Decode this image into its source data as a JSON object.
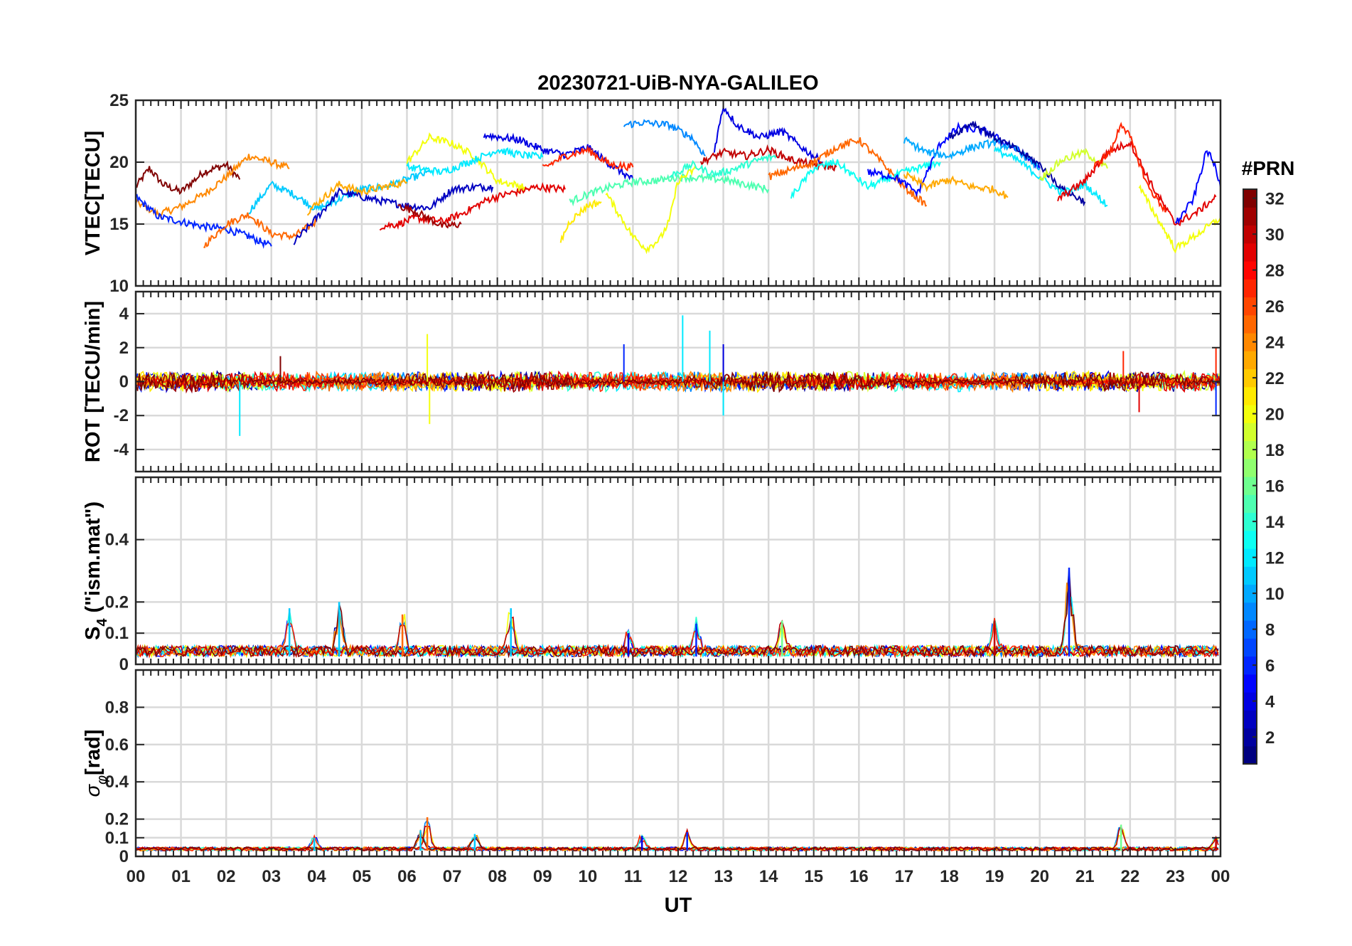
{
  "figure": {
    "title": "20230721-UiB-NYA-GALILEO",
    "xlabel": "UT",
    "x_ticks": [
      "00",
      "01",
      "02",
      "03",
      "04",
      "05",
      "06",
      "07",
      "08",
      "09",
      "10",
      "11",
      "12",
      "13",
      "14",
      "15",
      "16",
      "17",
      "18",
      "19",
      "20",
      "21",
      "22",
      "23",
      "00"
    ]
  },
  "colorbar": {
    "label": "#PRN",
    "range": [
      1,
      32
    ],
    "ticks": [
      "2",
      "4",
      "6",
      "8",
      "10",
      "12",
      "14",
      "16",
      "18",
      "20",
      "22",
      "24",
      "26",
      "28",
      "30",
      "32"
    ],
    "colormap": "jet"
  },
  "chart_data": [
    {
      "id": "vtec",
      "type": "line",
      "ylabel": "VTEC[TECU]",
      "ylim": [
        10,
        25
      ],
      "yticks": [
        "10",
        "15",
        "20",
        "25"
      ],
      "xlim": [
        0,
        24
      ],
      "grid": true,
      "series": [
        {
          "prn": 32,
          "x": [
            0.0,
            0.3,
            0.6,
            1.0,
            1.5,
            2.0,
            2.3
          ],
          "values": [
            18.0,
            19.5,
            18.2,
            17.6,
            19.2,
            19.8,
            18.6
          ]
        },
        {
          "prn": 24,
          "x": [
            0.0,
            0.5,
            1.0,
            1.5,
            2.0,
            2.5,
            3.0,
            3.4
          ],
          "values": [
            16.8,
            15.8,
            16.4,
            17.4,
            18.8,
            20.5,
            20.0,
            19.5
          ]
        },
        {
          "prn": 6,
          "x": [
            0.0,
            0.5,
            1.0,
            1.5,
            2.0,
            2.5,
            3.0
          ],
          "values": [
            17.2,
            15.6,
            15.2,
            14.8,
            14.6,
            14.0,
            13.2
          ]
        },
        {
          "prn": 25,
          "x": [
            1.5,
            2.0,
            2.5,
            3.0,
            3.5,
            4.0
          ],
          "values": [
            13.2,
            15.0,
            15.8,
            14.2,
            14.0,
            15.2
          ]
        },
        {
          "prn": 11,
          "x": [
            2.5,
            3.0,
            3.5,
            4.0,
            4.5,
            5.0,
            5.5,
            6.0,
            6.5
          ],
          "values": [
            16.0,
            18.2,
            17.4,
            16.2,
            17.0,
            17.8,
            18.0,
            18.6,
            19.2
          ]
        },
        {
          "prn": 3,
          "x": [
            3.5,
            4.0,
            4.5,
            5.0,
            5.5,
            6.0,
            6.5,
            7.0,
            7.5,
            7.9
          ],
          "values": [
            13.5,
            15.5,
            17.6,
            17.2,
            16.8,
            16.5,
            16.3,
            17.8,
            18.0,
            18.0
          ]
        },
        {
          "prn": 23,
          "x": [
            3.8,
            4.5,
            5.0,
            5.5,
            6.0
          ],
          "values": [
            16.0,
            18.2,
            17.6,
            18.0,
            18.4
          ]
        },
        {
          "prn": 29,
          "x": [
            5.4,
            5.8,
            6.2,
            6.8,
            7.2,
            7.8,
            8.3,
            8.9,
            9.5
          ],
          "values": [
            14.8,
            15.0,
            15.5,
            15.2,
            15.8,
            17.0,
            17.5,
            18.0,
            17.8
          ]
        },
        {
          "prn": 31,
          "x": [
            5.8,
            6.2,
            6.8,
            7.2
          ],
          "values": [
            16.5,
            16.0,
            14.8,
            15.0
          ]
        },
        {
          "prn": 20,
          "x": [
            6.0,
            6.5,
            7.0,
            7.5,
            8.0,
            8.6
          ],
          "values": [
            20.0,
            22.0,
            21.5,
            20.5,
            18.5,
            18.0
          ]
        },
        {
          "prn": 12,
          "x": [
            6.0,
            6.8,
            7.5,
            8.0,
            8.5,
            9.0
          ],
          "values": [
            19.6,
            19.2,
            20.2,
            21.0,
            20.6,
            20.4
          ]
        },
        {
          "prn": 4,
          "x": [
            7.7,
            8.5,
            9.0,
            9.5,
            10.0,
            10.5,
            11.0
          ],
          "values": [
            22.2,
            21.8,
            21.0,
            20.6,
            21.2,
            19.8,
            18.6
          ]
        },
        {
          "prn": 27,
          "x": [
            9.0,
            9.5,
            10.0,
            10.5,
            11.0
          ],
          "values": [
            19.5,
            20.5,
            21.0,
            19.8,
            19.6
          ]
        },
        {
          "prn": 21,
          "x": [
            9.4,
            9.6,
            10.0,
            10.3
          ],
          "values": [
            13.6,
            15.2,
            16.5,
            16.8
          ]
        },
        {
          "prn": 15,
          "x": [
            9.6,
            10.0,
            10.5,
            11.0,
            11.5,
            12.0,
            13.0,
            14.0
          ],
          "values": [
            16.8,
            17.4,
            18.0,
            18.4,
            18.5,
            18.8,
            18.6,
            17.8
          ]
        },
        {
          "prn": 20,
          "x": [
            10.4,
            11.0,
            11.3,
            11.6,
            11.8,
            12.0,
            12.4
          ],
          "values": [
            17.5,
            14.0,
            13.0,
            13.8,
            15.2,
            18.5,
            19.5
          ]
        },
        {
          "prn": 9,
          "x": [
            10.8,
            11.2,
            11.8,
            12.3,
            12.6
          ],
          "values": [
            23.0,
            23.2,
            23.0,
            22.0,
            20.5
          ]
        },
        {
          "prn": 14,
          "x": [
            11.8,
            12.3,
            12.8,
            13.2,
            13.8,
            14.2
          ],
          "values": [
            18.8,
            19.8,
            19.0,
            19.4,
            20.2,
            20.5
          ]
        },
        {
          "prn": 4,
          "x": [
            12.8,
            13.0,
            13.3,
            13.8,
            14.3,
            14.8,
            15.2
          ],
          "values": [
            21.0,
            24.5,
            23.0,
            22.0,
            22.5,
            21.0,
            20.0
          ]
        },
        {
          "prn": 30,
          "x": [
            12.5,
            13.0,
            13.5,
            14.0,
            14.5,
            15.0,
            15.5
          ],
          "values": [
            20.0,
            20.8,
            20.5,
            21.0,
            20.2,
            19.8,
            19.6
          ]
        },
        {
          "prn": 25,
          "x": [
            14.0,
            14.5,
            15.0,
            15.5,
            16.0,
            16.5,
            17.0,
            17.5
          ],
          "values": [
            18.8,
            19.4,
            20.0,
            21.2,
            21.8,
            20.0,
            18.0,
            16.5
          ]
        },
        {
          "prn": 13,
          "x": [
            14.5,
            15.0,
            15.5,
            16.2,
            17.0,
            17.8
          ],
          "values": [
            17.2,
            19.5,
            20.0,
            18.0,
            19.2,
            20.0
          ]
        },
        {
          "prn": 5,
          "x": [
            16.2,
            16.8,
            17.3,
            17.8,
            18.2,
            18.8,
            19.5,
            20.0
          ],
          "values": [
            19.2,
            18.8,
            17.5,
            21.5,
            22.8,
            22.5,
            21.0,
            19.5
          ]
        },
        {
          "prn": 10,
          "x": [
            17.0,
            17.5,
            18.0,
            18.5,
            19.0,
            19.5,
            20.0
          ],
          "values": [
            21.8,
            20.8,
            20.5,
            21.2,
            21.6,
            21.0,
            19.5
          ]
        },
        {
          "prn": 23,
          "x": [
            17.0,
            17.5,
            18.0,
            18.5,
            19.0,
            19.3
          ],
          "values": [
            19.0,
            18.0,
            18.6,
            18.0,
            17.8,
            17.2
          ]
        },
        {
          "prn": 2,
          "x": [
            18.0,
            18.5,
            19.0,
            19.5,
            20.0,
            20.5,
            21.0
          ],
          "values": [
            22.0,
            23.2,
            22.0,
            21.0,
            19.8,
            17.8,
            16.8
          ]
        },
        {
          "prn": 12,
          "x": [
            19.0,
            19.5,
            20.0,
            20.5,
            21.0,
            21.5
          ],
          "values": [
            21.0,
            20.2,
            18.8,
            17.5,
            18.2,
            16.5
          ]
        },
        {
          "prn": 19,
          "x": [
            20.0,
            20.5,
            21.0,
            21.5
          ],
          "values": [
            18.6,
            20.2,
            20.8,
            19.5
          ]
        },
        {
          "prn": 29,
          "x": [
            20.4,
            21.0,
            21.5,
            22.0,
            22.5,
            23.0,
            23.5,
            23.9
          ],
          "values": [
            17.0,
            18.5,
            20.8,
            21.6,
            18.0,
            15.0,
            16.0,
            17.2
          ]
        },
        {
          "prn": 27,
          "x": [
            21.2,
            21.6,
            21.8,
            22.0,
            22.4,
            22.8
          ],
          "values": [
            19.6,
            21.0,
            23.2,
            22.0,
            18.0,
            16.0
          ]
        },
        {
          "prn": 20,
          "x": [
            22.2,
            22.6,
            23.0,
            23.5,
            24.0
          ],
          "values": [
            18.0,
            15.5,
            13.0,
            14.2,
            15.5
          ]
        },
        {
          "prn": 5,
          "x": [
            23.0,
            23.4,
            23.7,
            23.9,
            24.0
          ],
          "values": [
            15.0,
            17.0,
            21.0,
            19.5,
            18.0
          ]
        }
      ]
    },
    {
      "id": "rot",
      "type": "line",
      "ylabel": "ROT [TECU/min]",
      "ylim": [
        -5.3,
        5.3
      ],
      "yticks": [
        "-4",
        "-2",
        "0",
        "2",
        "4"
      ],
      "xlim": [
        0,
        24
      ],
      "grid": true,
      "baseline": 0,
      "spikes": [
        {
          "x": 2.3,
          "value": -3.2
        },
        {
          "x": 3.2,
          "value": 1.5
        },
        {
          "x": 6.45,
          "value": 2.8
        },
        {
          "x": 6.5,
          "value": -2.5
        },
        {
          "x": 10.8,
          "value": 2.2
        },
        {
          "x": 12.1,
          "value": 3.9
        },
        {
          "x": 12.7,
          "value": 3.0
        },
        {
          "x": 13.0,
          "value": 2.2
        },
        {
          "x": 13.0,
          "value": -2.0
        },
        {
          "x": 21.85,
          "value": 1.8
        },
        {
          "x": 22.2,
          "value": -1.8
        },
        {
          "x": 23.9,
          "value": 2.0
        },
        {
          "x": 23.9,
          "value": -2.0
        }
      ]
    },
    {
      "id": "s4",
      "type": "line",
      "ylabel": "S4 (\"ism.mat\")",
      "ylabel_main": "S",
      "ylabel_sub": "4",
      "ylabel_rest": "  (\"ism.mat\")",
      "ylim": [
        0,
        0.6
      ],
      "yticks": [
        "0",
        "0.1",
        "0.2",
        "0.4"
      ],
      "xlim": [
        0,
        24
      ],
      "grid": true,
      "peaks": [
        {
          "x": 3.4,
          "value": 0.18
        },
        {
          "x": 4.5,
          "value": 0.2
        },
        {
          "x": 5.9,
          "value": 0.16
        },
        {
          "x": 8.3,
          "value": 0.18
        },
        {
          "x": 10.9,
          "value": 0.1
        },
        {
          "x": 12.4,
          "value": 0.13
        },
        {
          "x": 14.3,
          "value": 0.14
        },
        {
          "x": 19.0,
          "value": 0.14
        },
        {
          "x": 20.65,
          "value": 0.31
        }
      ]
    },
    {
      "id": "sigphi",
      "type": "line",
      "ylabel": "σφ[rad]",
      "ylabel_main": "σ",
      "ylabel_sub": "φ",
      "ylabel_rest": "[rad]",
      "ylim": [
        0,
        1.0
      ],
      "yticks": [
        "0",
        "0.1",
        "0.2",
        "0.4",
        "0.6",
        "0.8"
      ],
      "xlim": [
        0,
        24
      ],
      "grid": true,
      "peaks": [
        {
          "x": 3.95,
          "value": 0.1
        },
        {
          "x": 6.3,
          "value": 0.14
        },
        {
          "x": 6.45,
          "value": 0.21
        },
        {
          "x": 7.5,
          "value": 0.12
        },
        {
          "x": 11.2,
          "value": 0.11
        },
        {
          "x": 12.2,
          "value": 0.13
        },
        {
          "x": 21.8,
          "value": 0.17
        },
        {
          "x": 23.9,
          "value": 0.1
        }
      ]
    }
  ]
}
